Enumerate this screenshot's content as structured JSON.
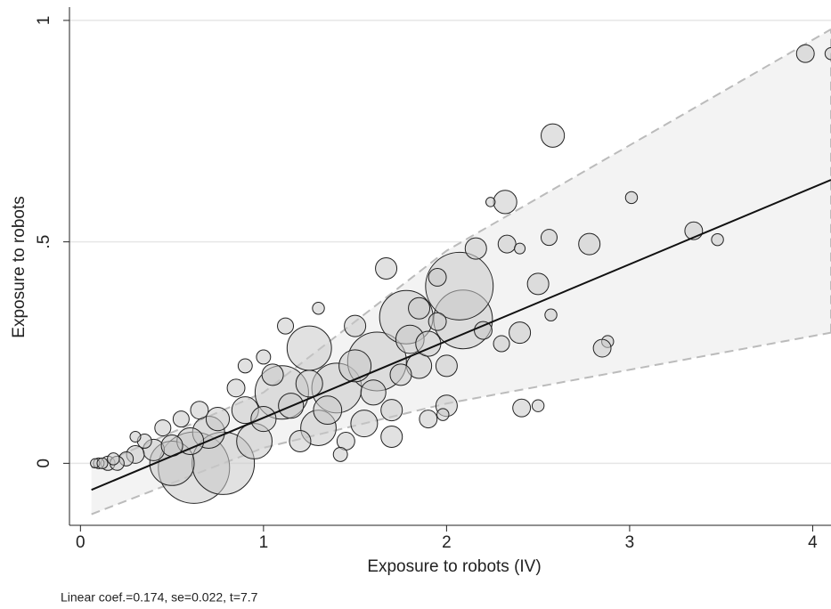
{
  "chart_data": {
    "type": "scatter",
    "xlabel": "Exposure to robots (IV)",
    "ylabel": "Exposure to robots",
    "annotation": "Linear coef.=0.174, se=0.022, t=7.7",
    "xlim": [
      -0.06,
      4.1
    ],
    "ylim": [
      -0.14,
      1.03
    ],
    "xticks": [
      0,
      1,
      2,
      3,
      4
    ],
    "yticks": [
      0,
      {
        "value": 0.5,
        "label": ".5"
      },
      1
    ],
    "grid": true,
    "color": "#c8c8c8",
    "x": [
      0.62,
      0.78,
      0.5,
      1.1,
      1.25,
      1.4,
      1.62,
      1.78,
      2.09,
      2.07,
      0.95,
      1.3,
      1.55,
      0.7,
      0.6,
      0.9,
      1.5,
      1.8,
      1.15,
      1.35,
      1.6,
      1.25,
      1.85,
      1.9,
      0.4,
      0.75,
      1.0,
      1.05,
      0.5,
      1.2,
      1.7,
      2.0,
      1.75,
      2.0,
      3.96,
      4.1,
      2.58,
      2.32,
      2.24,
      3.01,
      3.35,
      3.48,
      2.78,
      2.56,
      2.33,
      2.16,
      2.4,
      2.5,
      2.57,
      2.4,
      2.88,
      2.85,
      2.41,
      2.5,
      1.67,
      1.7,
      1.98,
      1.9,
      1.0,
      1.85,
      1.5,
      1.95,
      2.2,
      0.3,
      0.15,
      0.1,
      0.08,
      0.25,
      0.35,
      0.45,
      0.55,
      0.65,
      0.85,
      1.45,
      1.95,
      2.3,
      0.3,
      1.12,
      1.42,
      0.9,
      1.3,
      0.2,
      0.18,
      0.12
    ],
    "values": [
      -0.01,
      0.0,
      0.0,
      0.16,
      0.26,
      0.17,
      0.23,
      0.33,
      0.325,
      0.4,
      0.05,
      0.08,
      0.09,
      0.07,
      0.05,
      0.12,
      0.22,
      0.28,
      0.13,
      0.12,
      0.16,
      0.18,
      0.22,
      0.27,
      0.03,
      0.1,
      0.1,
      0.2,
      0.04,
      0.05,
      0.12,
      0.22,
      0.2,
      0.13,
      0.925,
      0.925,
      0.74,
      0.59,
      0.59,
      0.6,
      0.525,
      0.505,
      0.495,
      0.51,
      0.495,
      0.485,
      0.485,
      0.405,
      0.335,
      0.295,
      0.275,
      0.26,
      0.125,
      0.13,
      0.44,
      0.06,
      0.11,
      0.1,
      0.24,
      0.35,
      0.31,
      0.42,
      0.3,
      0.02,
      0.0,
      0.0,
      0.0,
      0.01,
      0.05,
      0.08,
      0.1,
      0.12,
      0.17,
      0.05,
      0.32,
      0.27,
      0.06,
      0.31,
      0.02,
      0.22,
      0.35,
      0.0,
      0.01,
      0.0
    ],
    "sizes": [
      178,
      136,
      69,
      100,
      69,
      87,
      121,
      100,
      121,
      160,
      44,
      44,
      25,
      36,
      25,
      25,
      36,
      28,
      22,
      28,
      22,
      25,
      22,
      22,
      16,
      19,
      22,
      16,
      16,
      16,
      16,
      16,
      16,
      16,
      11,
      5,
      19,
      19,
      3,
      5,
      11,
      5,
      16,
      9,
      11,
      16,
      4,
      16,
      5,
      16,
      5,
      11,
      11,
      5,
      16,
      16,
      5,
      11,
      7,
      16,
      16,
      11,
      11,
      11,
      7,
      4,
      3,
      7,
      7,
      9,
      9,
      11,
      11,
      11,
      11,
      9,
      4,
      9,
      7,
      7,
      5,
      7,
      5,
      4
    ],
    "fit": {
      "x": [
        0.06,
        4.1
      ],
      "y": [
        -0.06,
        0.64
      ]
    },
    "band": {
      "x": [
        0.06,
        1,
        2,
        4.1
      ],
      "lower": [
        -0.115,
        0.035,
        0.135,
        0.295
      ],
      "upper": [
        -0.01,
        0.16,
        0.48,
        0.98
      ]
    }
  }
}
